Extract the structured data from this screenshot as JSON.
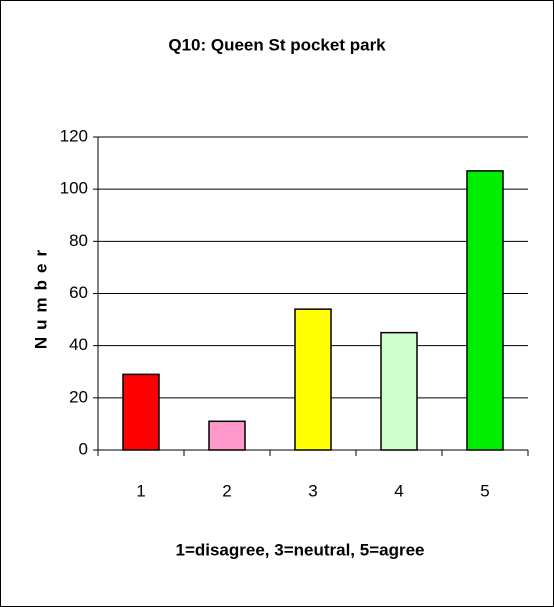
{
  "chart_data": {
    "type": "bar",
    "title": "Q10: Queen St pocket park",
    "x_label": "1=disagree, 3=neutral, 5=agree",
    "y_label": "Number",
    "categories": [
      "1",
      "2",
      "3",
      "4",
      "5"
    ],
    "values": [
      29,
      11,
      54,
      45,
      107
    ],
    "colors": [
      "#ff0000",
      "#ff99cc",
      "#ffff00",
      "#ccffcc",
      "#00ee00"
    ],
    "ylim": [
      0,
      120
    ],
    "yticks": [
      0,
      20,
      40,
      60,
      80,
      100,
      120
    ],
    "grid": true
  }
}
